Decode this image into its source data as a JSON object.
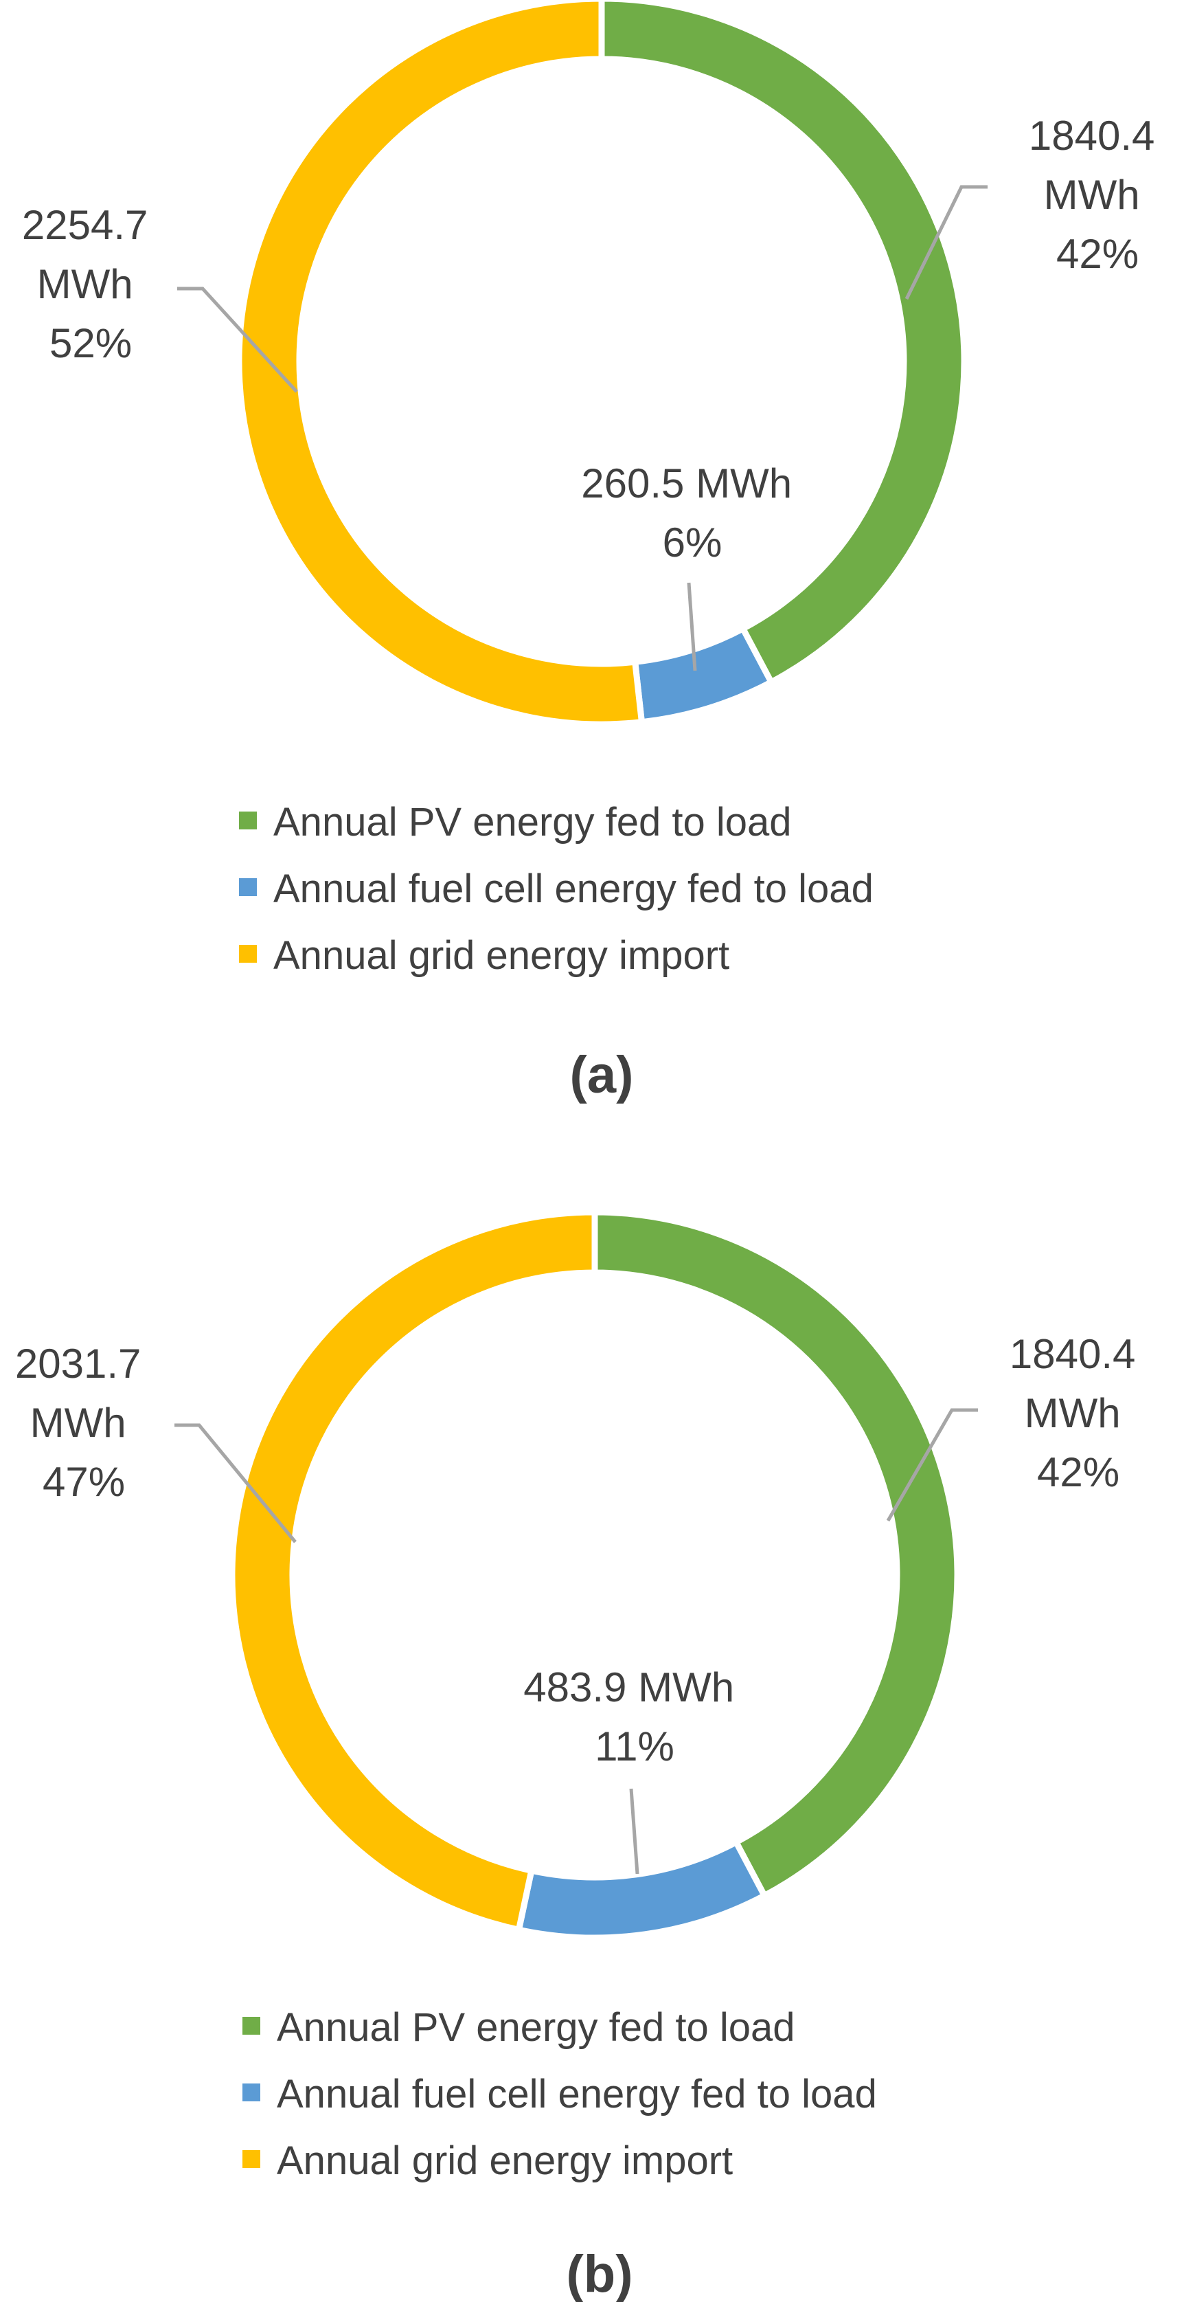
{
  "colors": {
    "pv": "#70AD47",
    "fuel_cell": "#5B9BD5",
    "grid": "#FFC000",
    "leader": "#A6A6A6",
    "text": "#404040"
  },
  "legend": [
    {
      "key": "pv",
      "label": "Annual PV energy fed to load"
    },
    {
      "key": "fuel_cell",
      "label": "Annual fuel cell energy fed to load"
    },
    {
      "key": "grid",
      "label": "Annual grid energy import"
    }
  ],
  "chart_data": [
    {
      "type": "pie",
      "variant": "donut",
      "caption": "(a)",
      "unit": "MWh",
      "categories": [
        "Annual PV energy fed to load",
        "Annual fuel cell energy fed to load",
        "Annual grid energy import"
      ],
      "values": [
        1840.4,
        260.5,
        2254.7
      ],
      "percents": [
        "42%",
        "6%",
        "52%"
      ],
      "labels": [
        {
          "lines": [
            "1840.4",
            "MWh",
            "42%"
          ]
        },
        {
          "lines": [
            "260.5 MWh",
            "6%"
          ]
        },
        {
          "lines": [
            "2254.7",
            "MWh",
            "52%"
          ]
        }
      ],
      "legend_position": "bottom"
    },
    {
      "type": "pie",
      "variant": "donut",
      "caption": "(b)",
      "unit": "MWh",
      "categories": [
        "Annual PV energy fed to load",
        "Annual fuel cell energy fed to load",
        "Annual grid energy import"
      ],
      "values": [
        1840.4,
        483.9,
        2031.7
      ],
      "percents": [
        "42%",
        "11%",
        "47%"
      ],
      "labels": [
        {
          "lines": [
            "1840.4",
            "MWh",
            "42%"
          ]
        },
        {
          "lines": [
            "483.9 MWh",
            "11%"
          ]
        },
        {
          "lines": [
            "2031.7",
            "MWh",
            "47%"
          ]
        }
      ],
      "legend_position": "bottom"
    }
  ]
}
